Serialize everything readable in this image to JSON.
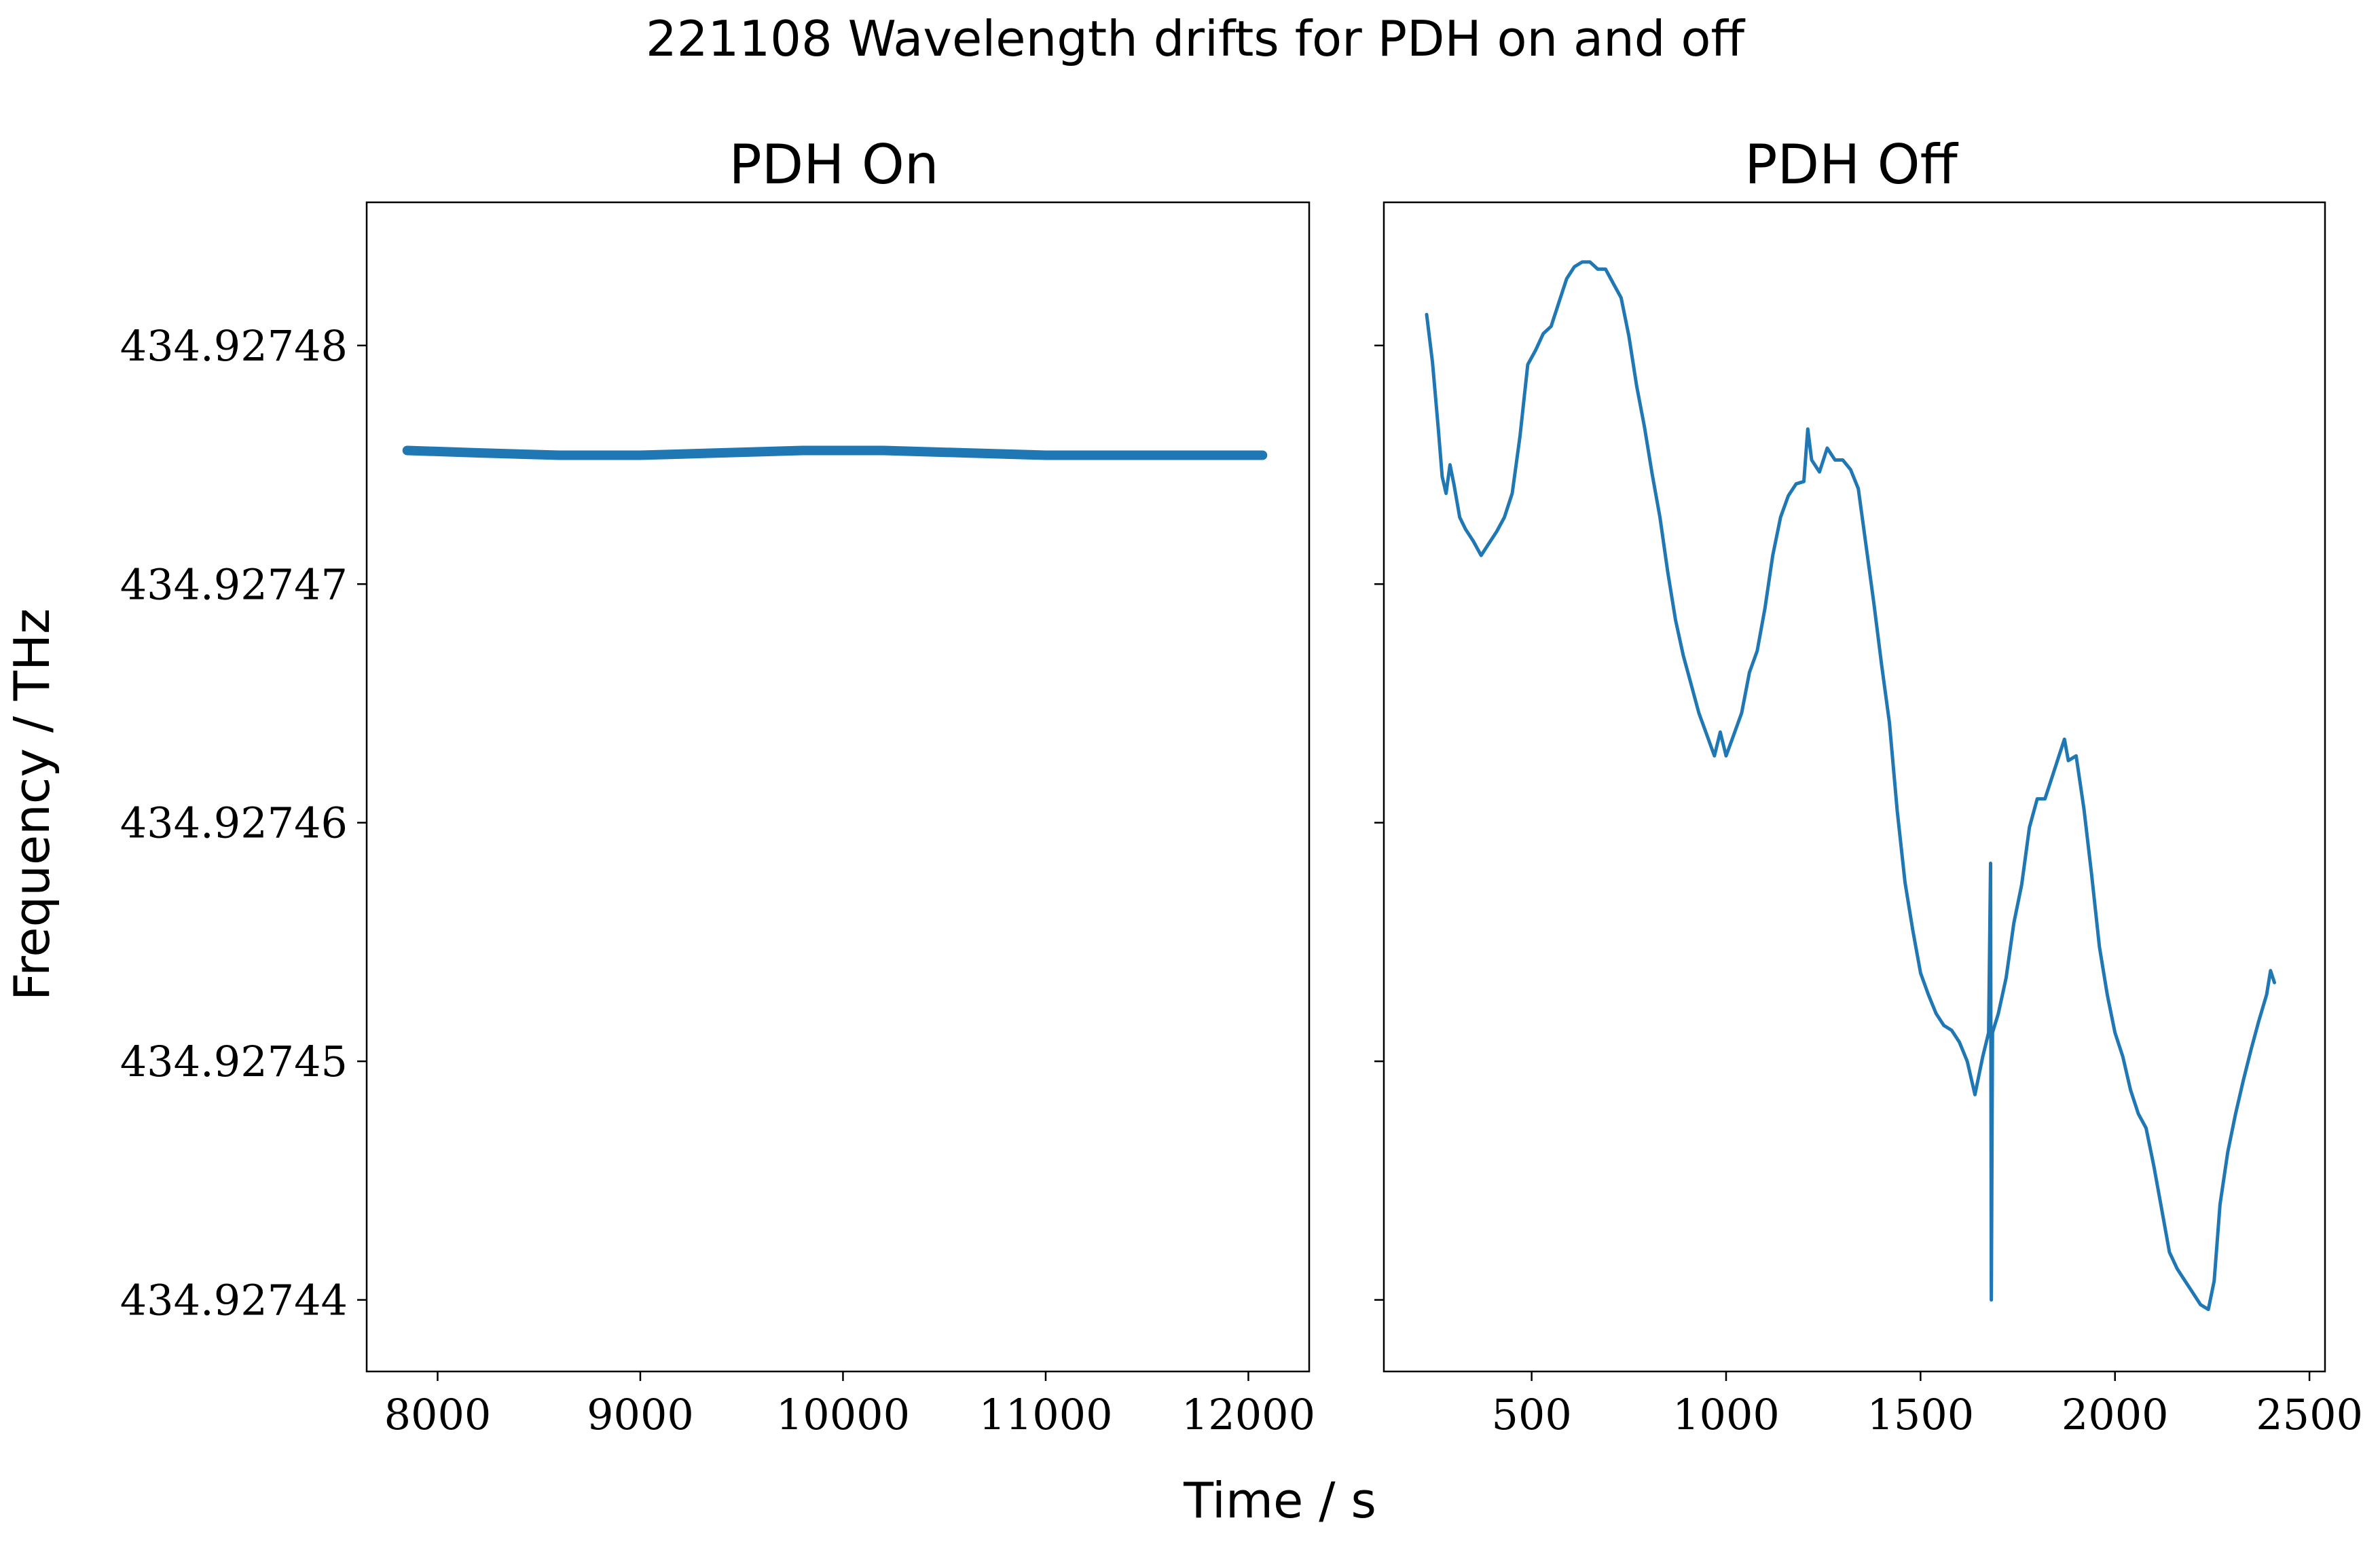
{
  "figure": {
    "suptitle": "221108 Wavelength drifts for PDH on and off",
    "xlabel": "Time / s",
    "ylabel": "Frequency / THz"
  },
  "line_color": "#1f77b4",
  "y_ticks": [
    "434.92744",
    "434.92745",
    "434.92746",
    "434.92747",
    "434.92748"
  ],
  "chart_data": [
    {
      "type": "line",
      "title": "PDH On",
      "xlabel": "Time / s",
      "ylabel": "Frequency / THz",
      "xlim": [
        7650,
        12300
      ],
      "ylim": [
        434.927437,
        434.927486
      ],
      "x_ticks": [
        8000,
        9000,
        10000,
        11000,
        12000
      ],
      "x_tick_labels": [
        "8000",
        "9000",
        "10000",
        "11000",
        "12000"
      ],
      "y_ticks": [
        434.92744,
        434.92745,
        434.92746,
        434.92747,
        434.92748
      ],
      "grid": false,
      "series": [
        {
          "x": [
            7850,
            8200,
            8600,
            9000,
            9400,
            9800,
            10200,
            10600,
            11000,
            11400,
            11800,
            12070
          ],
          "y": [
            434.9274756,
            434.9274755,
            434.9274754,
            434.9274754,
            434.9274755,
            434.9274756,
            434.9274756,
            434.9274755,
            434.9274754,
            434.9274754,
            434.9274754,
            434.9274754
          ]
        }
      ]
    },
    {
      "type": "line",
      "title": "PDH Off",
      "xlabel": "Time / s",
      "ylabel": "",
      "xlim": [
        120,
        2540
      ],
      "ylim": [
        434.927437,
        434.927486
      ],
      "x_ticks": [
        500,
        1000,
        1500,
        2000,
        2500
      ],
      "x_tick_labels": [
        "500",
        "1000",
        "1500",
        "2000",
        "2500"
      ],
      "y_ticks": [
        434.92744,
        434.92745,
        434.92746,
        434.92747,
        434.92748
      ],
      "grid": false,
      "series": [
        {
          "x": [
            230,
            245,
            260,
            270,
            280,
            290,
            300,
            315,
            330,
            350,
            370,
            390,
            410,
            430,
            450,
            470,
            490,
            510,
            530,
            550,
            570,
            590,
            610,
            630,
            650,
            670,
            690,
            710,
            730,
            750,
            770,
            790,
            810,
            830,
            850,
            870,
            890,
            910,
            930,
            950,
            970,
            985,
            1000,
            1020,
            1040,
            1060,
            1080,
            1100,
            1120,
            1140,
            1160,
            1180,
            1200,
            1210,
            1220,
            1240,
            1260,
            1280,
            1300,
            1320,
            1340,
            1360,
            1380,
            1400,
            1420,
            1440,
            1460,
            1480,
            1500,
            1520,
            1540,
            1560,
            1580,
            1600,
            1620,
            1640,
            1660,
            1675,
            1680,
            1682,
            1685,
            1700,
            1720,
            1740,
            1760,
            1780,
            1800,
            1820,
            1840,
            1860,
            1870,
            1880,
            1900,
            1920,
            1940,
            1960,
            1980,
            2000,
            2020,
            2040,
            2060,
            2080,
            2100,
            2120,
            2140,
            2160,
            2180,
            2200,
            2220,
            2240,
            2255,
            2270,
            2290,
            2310,
            2330,
            2350,
            2370,
            2390,
            2400,
            2410
          ],
          "y": [
            434.9274813,
            434.9274793,
            434.9274765,
            434.9274745,
            434.9274738,
            434.927475,
            434.9274742,
            434.9274728,
            434.9274723,
            434.9274718,
            434.9274712,
            434.9274717,
            434.9274722,
            434.9274728,
            434.9274738,
            434.9274762,
            434.9274792,
            434.9274798,
            434.9274805,
            434.9274808,
            434.9274818,
            434.9274828,
            434.9274833,
            434.9274835,
            434.9274835,
            434.9274832,
            434.9274832,
            434.9274826,
            434.927482,
            434.9274804,
            434.9274783,
            434.9274766,
            434.9274746,
            434.9274728,
            434.9274705,
            434.9274685,
            434.927467,
            434.9274658,
            434.9274646,
            434.9274637,
            434.9274628,
            434.9274638,
            434.9274628,
            434.9274637,
            434.9274646,
            434.9274663,
            434.9274672,
            434.927469,
            434.9274712,
            434.9274728,
            434.9274737,
            434.9274742,
            434.9274743,
            434.9274765,
            434.9274752,
            434.9274747,
            434.9274757,
            434.9274752,
            434.9274752,
            434.9274748,
            434.927474,
            434.9274716,
            434.9274692,
            434.9274666,
            434.9274642,
            434.9274605,
            434.9274575,
            434.9274555,
            434.9274537,
            434.9274528,
            434.927452,
            434.9274515,
            434.9274513,
            434.9274508,
            434.92745,
            434.9274486,
            434.9274502,
            434.9274512,
            434.9274583,
            434.92744,
            434.9274512,
            434.927452,
            434.9274535,
            434.9274558,
            434.9274574,
            434.9274598,
            434.927461,
            434.927461,
            434.927462,
            434.927463,
            434.9274635,
            434.9274626,
            434.9274628,
            434.9274606,
            434.9274578,
            434.9274548,
            434.9274528,
            434.9274512,
            434.9274502,
            434.9274488,
            434.9274478,
            434.9274472,
            434.9274456,
            434.9274438,
            434.927442,
            434.9274413,
            434.9274408,
            434.9274403,
            434.9274398,
            434.9274396,
            434.9274408,
            434.927444,
            434.9274462,
            434.9274478,
            434.9274492,
            434.9274505,
            434.9274517,
            434.9274528,
            434.9274538,
            434.9274533
          ]
        }
      ]
    }
  ]
}
